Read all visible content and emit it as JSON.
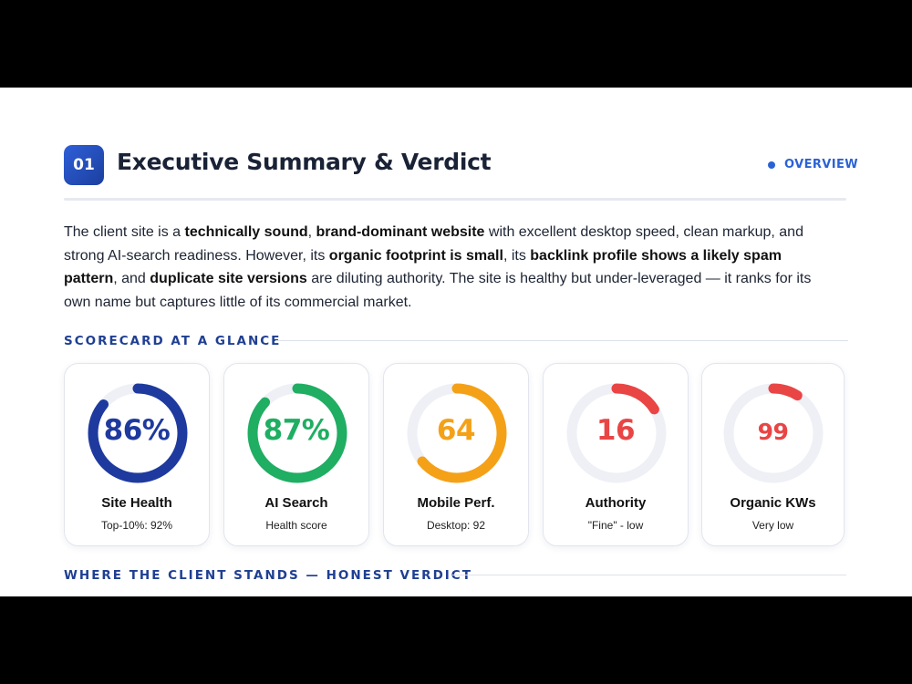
{
  "section": {
    "number": "01",
    "title": "Executive Summary & Verdict",
    "tag": "OVERVIEW"
  },
  "summary": {
    "parts": [
      {
        "text": "The client site is a ",
        "bold": false
      },
      {
        "text": "technically sound",
        "bold": true
      },
      {
        "text": ", ",
        "bold": false
      },
      {
        "text": "brand-dominant website",
        "bold": true
      },
      {
        "text": " with excellent desktop speed, clean markup, and strong AI-search readiness. However, its ",
        "bold": false
      },
      {
        "text": "organic footprint is small",
        "bold": true
      },
      {
        "text": ", its ",
        "bold": false
      },
      {
        "text": "backlink profile shows a likely spam pattern",
        "bold": true
      },
      {
        "text": ", and ",
        "bold": false
      },
      {
        "text": "duplicate site versions",
        "bold": true
      },
      {
        "text": " are diluting authority. The site is healthy but under-leveraged — it ranks for its own name but captures little of its commercial market.",
        "bold": false
      }
    ]
  },
  "scorecard": {
    "heading": "SCORECARD AT A GLANCE",
    "cards": [
      {
        "value": "86%",
        "label": "Site Health",
        "sub": "Top-10%: 92%",
        "fraction": 0.86,
        "color": "#1e3a9e"
      },
      {
        "value": "87%",
        "label": "AI Search",
        "sub": "Health score",
        "fraction": 0.87,
        "color": "#1fae62"
      },
      {
        "value": "64",
        "label": "Mobile Perf.",
        "sub": "Desktop: 92",
        "fraction": 0.64,
        "color": "#f4a118"
      },
      {
        "value": "16",
        "label": "Authority",
        "sub": "\"Fine\" - low",
        "fraction": 0.16,
        "color": "#e94545"
      },
      {
        "value": "99",
        "label": "Organic KWs",
        "sub": "Very low",
        "fraction": 0.09,
        "color": "#e94545"
      }
    ]
  },
  "verdict": {
    "heading": "WHERE THE CLIENT STANDS — HONEST VERDICT"
  },
  "colors": {
    "accent": "#2a62d6",
    "heading": "#1f3f92",
    "track": "#eef0f6"
  }
}
